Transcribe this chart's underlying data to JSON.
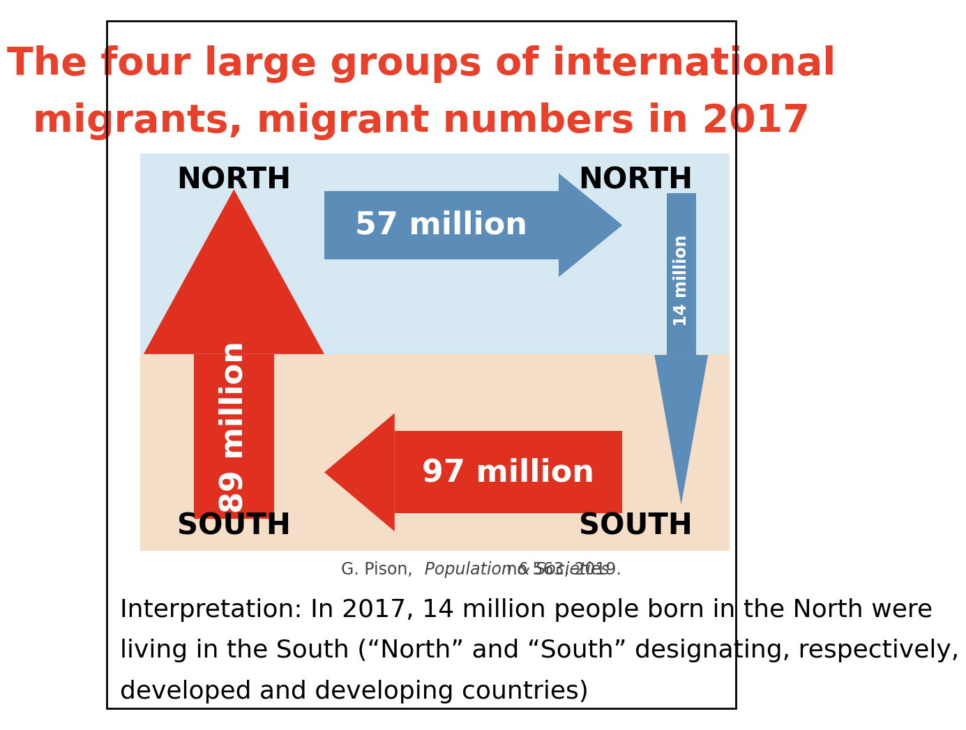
{
  "title_line1": "The four large groups of international",
  "title_line2": "migrants, migrant numbers in 2017",
  "title_color": "#E8402A",
  "bg_color": "#FFFFFF",
  "north_bg": "#D6E8F2",
  "south_bg": "#F5DEC8",
  "label_north_left": "NORTH",
  "label_south_left": "SOUTH",
  "label_north_right": "NORTH",
  "label_south_right": "SOUTH",
  "arrow_south_north_label": "89 million",
  "arrow_south_north_color": "#E03020",
  "arrow_north_north_label": "57 million",
  "arrow_north_north_color": "#5B8DB8",
  "arrow_south_south_label": "97 million",
  "arrow_south_south_color": "#E03020",
  "arrow_north_south_label": "14 million",
  "arrow_north_south_color": "#5B8DB8",
  "caption_normal": "G. Pison, ",
  "caption_italic": "Population & Societies",
  "caption_normal2": " no 563, 2019.",
  "interpretation_line1": "Interpretation: In 2017, 14 million people born in the North were",
  "interpretation_line2": "living in the South (“North” and “South” designating, respectively,",
  "interpretation_line3": "developed and developing countries)",
  "label_fontsize": 30,
  "arrow_text_fontsize": 32,
  "title_fontsize": 40,
  "caption_fontsize": 17,
  "interp_fontsize": 26
}
